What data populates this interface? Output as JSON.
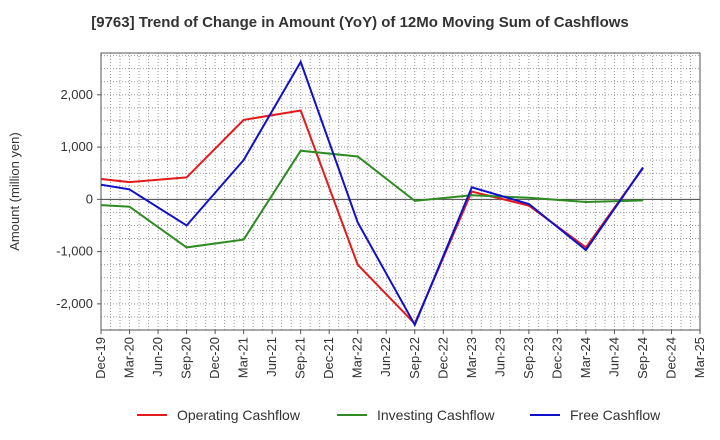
{
  "chart_data": {
    "type": "line",
    "title": "[9763]  Trend of Change in Amount (YoY) of 12Mo Moving Sum of Cashflows",
    "ylabel": "Amount (million yen)",
    "xlabel": "",
    "ylim": [
      -2500,
      2800
    ],
    "yticks": [
      -2000,
      -1000,
      0,
      1000,
      2000
    ],
    "ytick_labels": [
      "-2,000",
      "-1,000",
      "0",
      "1,000",
      "2,000"
    ],
    "grid": true,
    "legend_position": "bottom",
    "categories": [
      "Dec-19",
      "Mar-20",
      "Jun-20",
      "Sep-20",
      "Dec-20",
      "Mar-21",
      "Jun-21",
      "Sep-21",
      "Dec-21",
      "Mar-22",
      "Jun-22",
      "Sep-22",
      "Dec-22",
      "Mar-23",
      "Jun-23",
      "Sep-23",
      "Dec-23",
      "Mar-24",
      "Jun-24",
      "Sep-24",
      "Dec-24",
      "Mar-25"
    ],
    "series": [
      {
        "name": "Operating Cashflow",
        "color": "#e31a1c",
        "points": [
          [
            0,
            390
          ],
          [
            1,
            330
          ],
          [
            3,
            420
          ],
          [
            5,
            1520
          ],
          [
            7,
            1700
          ],
          [
            9,
            -1250
          ],
          [
            11,
            -2380
          ],
          [
            13,
            150
          ],
          [
            15,
            -120
          ],
          [
            17,
            -920
          ],
          [
            19,
            600
          ]
        ]
      },
      {
        "name": "Investing Cashflow",
        "color": "#2e8b22",
        "points": [
          [
            0,
            -110
          ],
          [
            1,
            -140
          ],
          [
            3,
            -920
          ],
          [
            5,
            -770
          ],
          [
            7,
            930
          ],
          [
            9,
            820
          ],
          [
            11,
            -30
          ],
          [
            13,
            80
          ],
          [
            15,
            30
          ],
          [
            17,
            -50
          ],
          [
            19,
            -20
          ]
        ]
      },
      {
        "name": "Free Cashflow",
        "color": "#1010cc",
        "points": [
          [
            0,
            280
          ],
          [
            1,
            190
          ],
          [
            3,
            -500
          ],
          [
            5,
            750
          ],
          [
            7,
            2630
          ],
          [
            9,
            -440
          ],
          [
            11,
            -2400
          ],
          [
            13,
            230
          ],
          [
            15,
            -90
          ],
          [
            17,
            -970
          ],
          [
            19,
            610
          ]
        ]
      }
    ]
  }
}
